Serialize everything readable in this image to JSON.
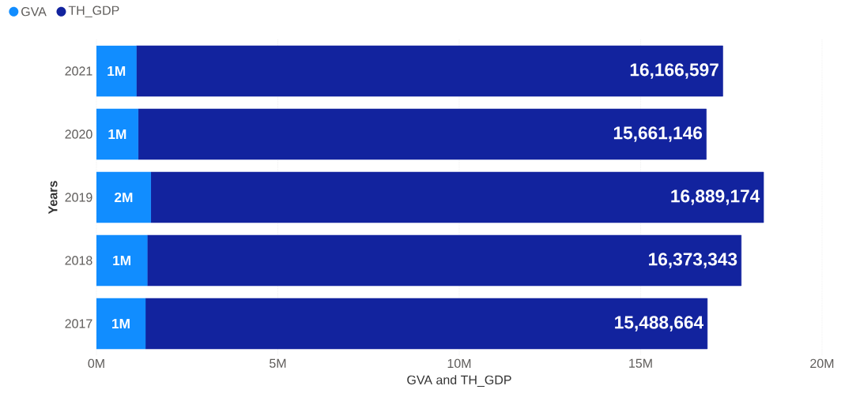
{
  "chart_data": {
    "type": "bar",
    "orientation": "horizontal",
    "stacked": true,
    "categories": [
      "2021",
      "2020",
      "2019",
      "2018",
      "2017"
    ],
    "series": [
      {
        "name": "GVA",
        "color": "#118dff",
        "values": [
          1100000,
          1150000,
          1500000,
          1400000,
          1350000
        ],
        "value_labels": [
          "1M",
          "1M",
          "2M",
          "1M",
          "1M"
        ]
      },
      {
        "name": "TH_GDP",
        "color": "#12239e",
        "values": [
          16166597,
          15661146,
          16889174,
          16373343,
          15488664
        ],
        "value_labels": [
          "16,166,597",
          "15,661,146",
          "16,889,174",
          "16,373,343",
          "15,488,664"
        ]
      }
    ],
    "xlim": [
      0,
      20000000
    ],
    "xticks": [
      {
        "value": 0,
        "label": "0M"
      },
      {
        "value": 5000000,
        "label": "5M"
      },
      {
        "value": 10000000,
        "label": "10M"
      },
      {
        "value": 15000000,
        "label": "15M"
      },
      {
        "value": 20000000,
        "label": "20M"
      }
    ],
    "xlabel": "GVA and TH_GDP",
    "ylabel": "Years",
    "grid": "x",
    "legend": "top left"
  }
}
